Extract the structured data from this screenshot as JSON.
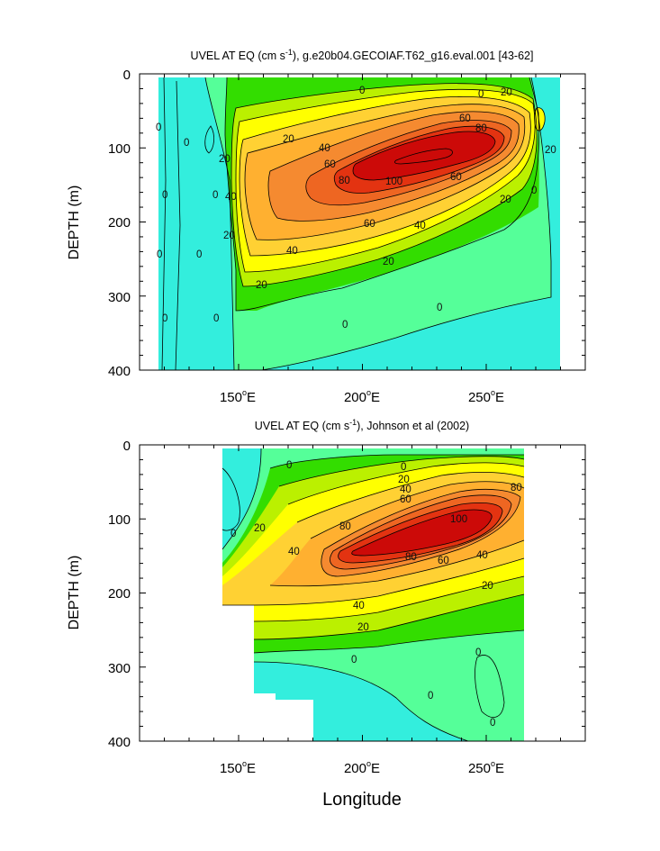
{
  "chart_data": [
    {
      "type": "contour",
      "title": "UVEL AT EQ (cm s",
      "title_sup": "-1",
      "title_rest": "), g.e20b04.GECOIAF.T62_g16.eval.001 [43-62]",
      "ylabel": "DEPTH (m)",
      "xlabel": "",
      "xlim": [
        110,
        290
      ],
      "ylim": [
        400,
        0
      ],
      "y_ticks": [
        "0",
        "100",
        "200",
        "300",
        "400"
      ],
      "x_ticks": [
        {
          "label": "150",
          "sup": "o",
          "suffix": "E"
        },
        {
          "label": "200",
          "sup": "o",
          "suffix": "E"
        },
        {
          "label": "250",
          "sup": "o",
          "suffix": "E"
        }
      ],
      "contour_labels": [
        "0",
        "0",
        "0",
        "0",
        "0",
        "0",
        "0",
        "0",
        "0",
        "0",
        "0",
        "0",
        "20",
        "20",
        "20",
        "20",
        "20",
        "20",
        "20",
        "40",
        "40",
        "40",
        "40",
        "60",
        "60",
        "60",
        "60",
        "80",
        "80",
        "100",
        "20",
        "0"
      ],
      "core": {
        "max_speed": 100,
        "longitude": 225,
        "depth": 115
      }
    },
    {
      "type": "contour",
      "title": "UVEL AT EQ (cm s",
      "title_sup": "-1",
      "title_rest": "), Johnson et al (2002)",
      "ylabel": "DEPTH (m)",
      "xlabel": "Longitude",
      "xlim": [
        110,
        290
      ],
      "ylim": [
        400,
        0
      ],
      "y_ticks": [
        "0",
        "100",
        "200",
        "300",
        "400"
      ],
      "x_ticks": [
        {
          "label": "150",
          "sup": "o",
          "suffix": "E"
        },
        {
          "label": "200",
          "sup": "o",
          "suffix": "E"
        },
        {
          "label": "250",
          "sup": "o",
          "suffix": "E"
        }
      ],
      "contour_labels": [
        "0",
        "0",
        "20",
        "40",
        "20",
        "40",
        "60",
        "80",
        "80",
        "100",
        "80",
        "60",
        "40",
        "20",
        "40",
        "20",
        "0",
        "0",
        "0",
        "0",
        "0"
      ],
      "core": {
        "max_speed": 100,
        "longitude": 235,
        "depth": 105
      }
    }
  ],
  "colors": {
    "c_neg": "#33eedd",
    "c0": "#55ff99",
    "c10": "#33dd00",
    "c20": "#bbf000",
    "c30": "#ffff00",
    "c40": "#ffd133",
    "c50": "#ffb030",
    "c60": "#f58a30",
    "c70": "#ee6622",
    "c80": "#e33311",
    "c90": "#cc0a08"
  }
}
